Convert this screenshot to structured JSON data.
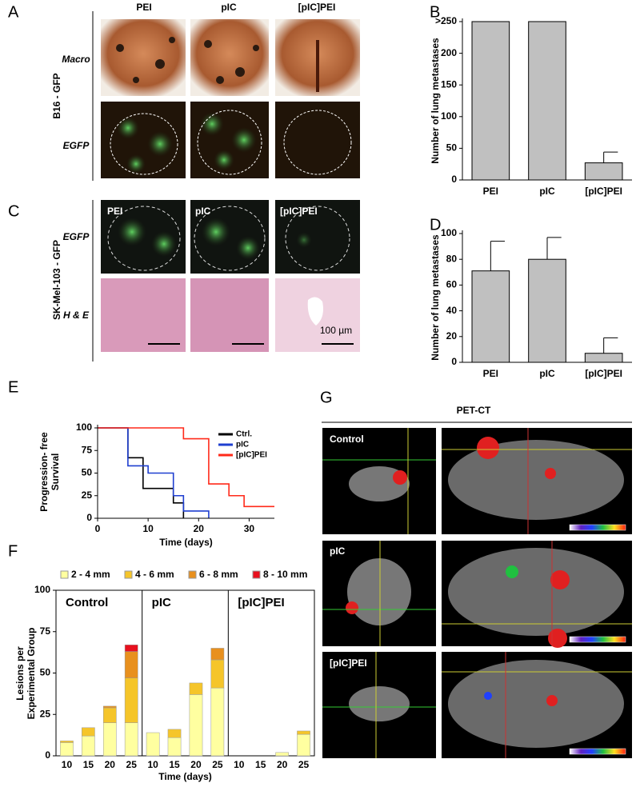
{
  "figure_a": {
    "panel": "A",
    "columns": [
      "PEI",
      "pIC",
      "[pIC]PEI"
    ],
    "rows": [
      "Macro",
      "EGFP"
    ],
    "side_label": "B16 - GFP"
  },
  "figure_c": {
    "panel": "C",
    "columns": [
      "PEI",
      "pIC",
      "[pIC]PEI"
    ],
    "rows": [
      "EGFP",
      "H & E"
    ],
    "side_label": "SK-Mel-103 - GFP",
    "scale_bar": "100 µm"
  },
  "figure_g": {
    "panel": "G",
    "title": "PET-CT",
    "rows": [
      "Control",
      "pIC",
      "[pIC]PEI"
    ]
  },
  "chart_data": [
    {
      "panel": "B",
      "type": "bar",
      "categories": [
        "PEI",
        "pIC",
        "[pIC]PEI"
      ],
      "values": [
        250,
        250,
        27
      ],
      "errors": [
        null,
        null,
        17
      ],
      "color": "#c0c0c0",
      "y_label": "Number of lung metastases",
      "ylim": [
        0,
        250
      ],
      "yticks": [
        0,
        50,
        100,
        150,
        200,
        {
          "value": 250,
          "label": ">250"
        }
      ]
    },
    {
      "panel": "D",
      "type": "bar",
      "categories": [
        "PEI",
        "pIC",
        "[pIC]PEI"
      ],
      "values": [
        71,
        80,
        7
      ],
      "errors": [
        23,
        17,
        12
      ],
      "color": "#c0c0c0",
      "y_label": "Number of lung metastases",
      "ylim": [
        0,
        100
      ],
      "yticks": [
        0,
        20,
        40,
        60,
        80,
        100
      ]
    },
    {
      "panel": "E",
      "type": "line",
      "step": true,
      "y_label": "Progression- free Survival",
      "x_label": "Time (days)",
      "xlim": [
        0,
        35
      ],
      "xticks": [
        0,
        10,
        20,
        30
      ],
      "ylim": [
        0,
        100
      ],
      "yticks": [
        0,
        25,
        50,
        75,
        100
      ],
      "series": [
        {
          "name": "Ctrl.",
          "color": "#000000",
          "x": [
            0,
            6,
            9,
            15,
            17
          ],
          "values": [
            100,
            67,
            33,
            17,
            0
          ]
        },
        {
          "name": "pIC",
          "color": "#1f3fd0",
          "x": [
            0,
            6,
            10,
            15,
            17,
            22
          ],
          "values": [
            100,
            58,
            50,
            25,
            8,
            0
          ]
        },
        {
          "name": "[pIC]PEI",
          "color": "#ff2a1a",
          "x": [
            0,
            17,
            22,
            26,
            29,
            35
          ],
          "values": [
            100,
            88,
            38,
            25,
            13,
            13
          ]
        }
      ]
    },
    {
      "panel": "F",
      "type": "stacked-bar",
      "groups": [
        "Control",
        "pIC",
        "[pIC]PEI"
      ],
      "categories": [
        "10",
        "15",
        "20",
        "25",
        "10",
        "15",
        "20",
        "25",
        "10",
        "15",
        "20",
        "25"
      ],
      "y_label": "Lesions per Experimental Group",
      "x_label": "Time (days)",
      "ylim": [
        0,
        100
      ],
      "yticks": [
        0,
        25,
        50,
        75,
        100
      ],
      "series": [
        {
          "name": "2 - 4 mm",
          "color": "#ffffa0",
          "values": [
            8,
            12,
            20,
            20,
            14,
            11,
            37,
            41,
            0,
            0,
            2,
            13
          ]
        },
        {
          "name": "4 - 6 mm",
          "color": "#f5c52a",
          "values": [
            1,
            5,
            9,
            27,
            0,
            5,
            7,
            17,
            0,
            0,
            0,
            2
          ]
        },
        {
          "name": "6 - 8 mm",
          "color": "#e8901e",
          "values": [
            0,
            0,
            1,
            16,
            0,
            0,
            0,
            7,
            0,
            0,
            0,
            0
          ]
        },
        {
          "name": "8 - 10 mm",
          "color": "#e8101e",
          "values": [
            0,
            0,
            0,
            4,
            0,
            0,
            0,
            0,
            0,
            0,
            0,
            0
          ]
        }
      ]
    }
  ]
}
